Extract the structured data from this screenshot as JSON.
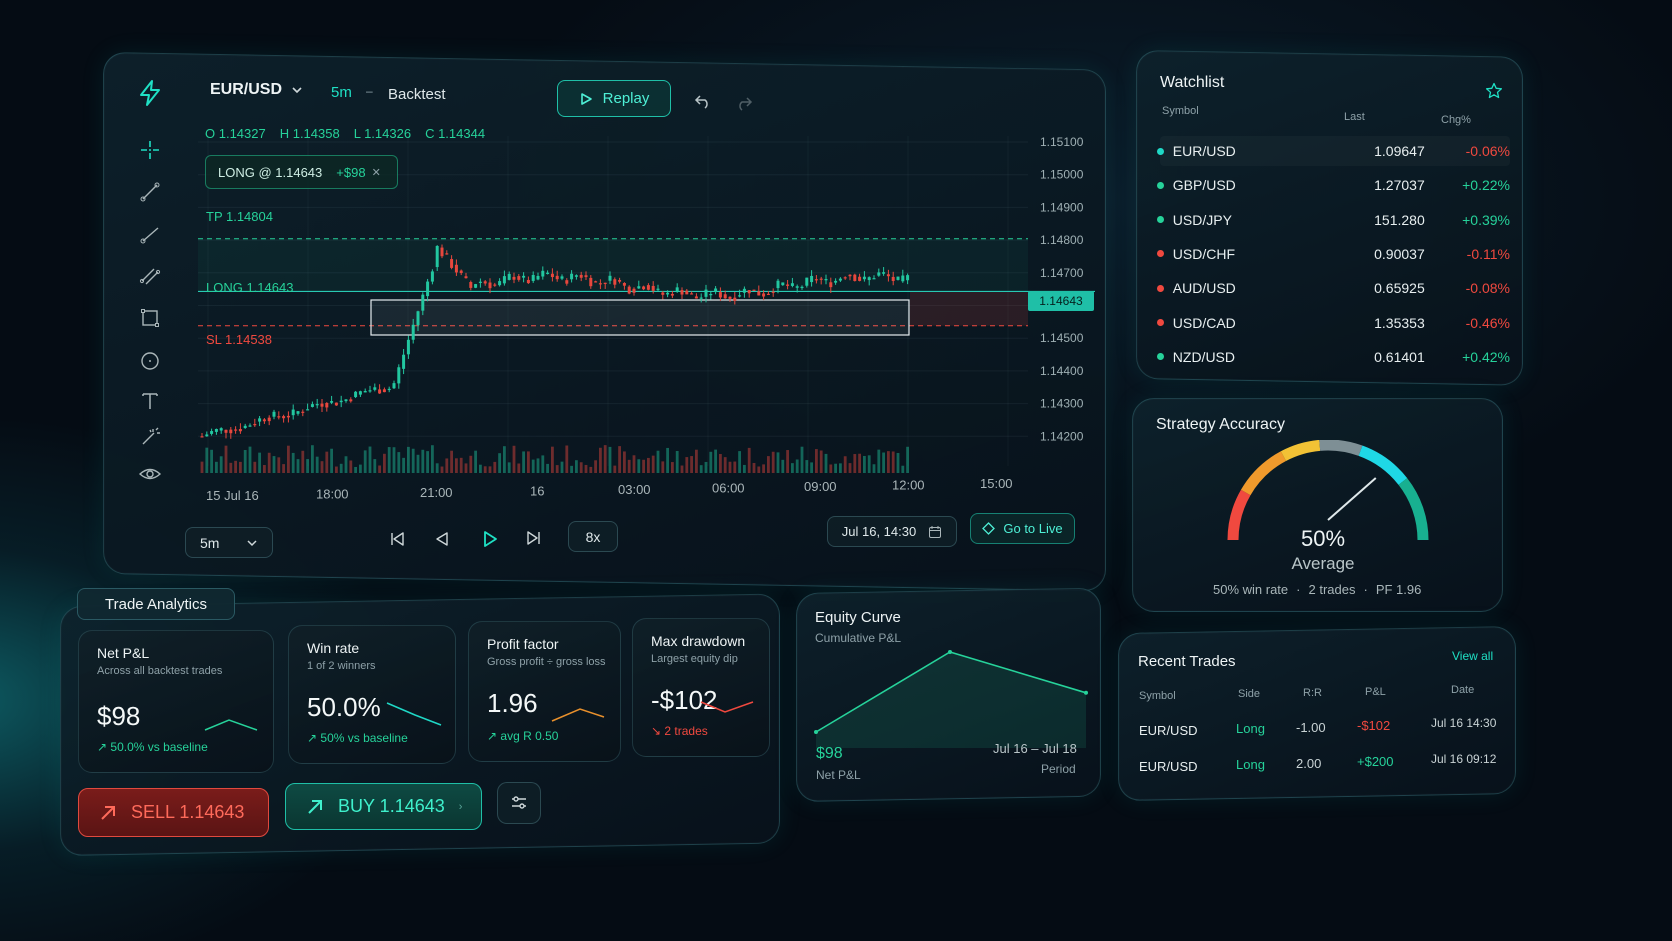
{
  "chart_panel": {
    "symbol": "EUR/USD",
    "timeframe": "5m",
    "mode": "Backtest",
    "replay_label": "Replay",
    "ohlc": {
      "o": "O 1.14327",
      "h": "H 1.14358",
      "l": "L 1.14326",
      "c": "C 1.14344"
    },
    "position_tag": {
      "label": "LONG @ 1.14643",
      "pnl": "+$98"
    },
    "tp_label": "TP 1.14804",
    "long_label": "LONG 1.14643",
    "sl_label": "SL 1.14538",
    "current_price": "1.14643",
    "price_axis": [
      "1.15100",
      "1.15000",
      "1.14900",
      "1.14800",
      "1.14700",
      "1.14600",
      "1.14500",
      "1.14400",
      "1.14300",
      "1.14200"
    ],
    "time_axis": [
      "15 Jul 16",
      "18:00",
      "21:00",
      "16",
      "03:00",
      "06:00",
      "09:00",
      "12:00",
      "15:00"
    ],
    "bottom_bar": {
      "timeframe_select": "5m",
      "speed": "8x",
      "datetime": "Jul 16, 14:30",
      "go_live": "Go to Live"
    },
    "icons": {
      "logo": "lightning-icon",
      "tools": [
        "crosshair-icon",
        "trend-line-icon",
        "ray-icon",
        "channel-icon",
        "rectangle-icon",
        "circle-icon",
        "text-icon",
        "magic-icon",
        "eye-icon"
      ]
    }
  },
  "chart_data": {
    "type": "candlestick",
    "title": "",
    "ylim": [
      1.1415,
      1.1515
    ],
    "levels": {
      "tp": 1.14804,
      "entry": 1.14643,
      "sl": 1.14538
    },
    "series_note": "",
    "x_range": [
      "15 Jul 16",
      "16 Jul 15:30"
    ]
  },
  "watchlist": {
    "title": "Watchlist",
    "columns": [
      "Symbol",
      "Last",
      "Chg%"
    ],
    "rows": [
      {
        "symbol": "EUR/USD",
        "last": "1.09647",
        "chg": "-0.06%",
        "dir": "up-dot",
        "dot": "#1fd8c6",
        "chgColor": "#f0493f"
      },
      {
        "symbol": "GBP/USD",
        "last": "1.27037",
        "chg": "+0.22%",
        "dot": "#26d29a",
        "chgColor": "#26d29a"
      },
      {
        "symbol": "USD/JPY",
        "last": "151.280",
        "chg": "+0.39%",
        "dot": "#26d29a",
        "chgColor": "#26d29a"
      },
      {
        "symbol": "USD/CHF",
        "last": "0.90037",
        "chg": "-0.11%",
        "dot": "#f0493f",
        "chgColor": "#f0493f"
      },
      {
        "symbol": "AUD/USD",
        "last": "0.65925",
        "chg": "-0.08%",
        "dot": "#f0493f",
        "chgColor": "#f0493f"
      },
      {
        "symbol": "USD/CAD",
        "last": "1.35353",
        "chg": "-0.46%",
        "dot": "#f0493f",
        "chgColor": "#f0493f"
      },
      {
        "symbol": "NZD/USD",
        "last": "0.61401",
        "chg": "+0.42%",
        "dot": "#26d29a",
        "chgColor": "#26d29a"
      }
    ]
  },
  "accuracy": {
    "title": "Strategy Accuracy",
    "value": "50%",
    "label": "Average",
    "fraction": 0.5,
    "footer": [
      "50% win rate",
      "2 trades",
      "PF 1.96"
    ]
  },
  "analytics": {
    "tab": "Trade Analytics",
    "cards": [
      {
        "title": "Net P&L",
        "sub": "Across all backtest trades",
        "value": "$98",
        "delta": "50.0% vs baseline",
        "delta_color": "#26d29a",
        "spark_color": "#26d29a"
      },
      {
        "title": "Win rate",
        "sub": "1 of 2 winners",
        "value": "50.0%",
        "delta": "50% vs baseline",
        "delta_color": "#26d29a",
        "spark_color": "#1fd8c6"
      },
      {
        "title": "Profit factor",
        "sub": "Gross profit ÷ gross loss",
        "value": "1.96",
        "delta": "avg R 0.50",
        "delta_color": "#26d29a",
        "spark_color": "#e8902c"
      },
      {
        "title": "Max drawdown",
        "sub": "Largest equity dip",
        "value": "-$102",
        "delta": "2 trades",
        "delta_color": "#f0493f",
        "spark_color": "#f0493f"
      }
    ],
    "sell": "SELL 1.14643",
    "buy": "BUY 1.14643"
  },
  "equity": {
    "title": "Equity Curve",
    "sub": "Cumulative P&L",
    "value": "$98",
    "value_label": "Net P&L",
    "period": "Jul 16 – Jul 18",
    "period_label": "Period",
    "points": [
      0,
      200,
      98
    ]
  },
  "recent": {
    "title": "Recent Trades",
    "view_all": "View all",
    "columns": [
      "Symbol",
      "Side",
      "R:R",
      "P&L",
      "Date"
    ],
    "rows": [
      {
        "symbol": "EUR/USD",
        "side": "Long",
        "rr": "-1.00",
        "pnl": "-$102",
        "date": "Jul 16 14:30",
        "pnlColor": "#f0493f"
      },
      {
        "symbol": "EUR/USD",
        "side": "Long",
        "rr": "2.00",
        "pnl": "+$200",
        "date": "Jul 16 09:12",
        "pnlColor": "#26d29a"
      }
    ]
  }
}
